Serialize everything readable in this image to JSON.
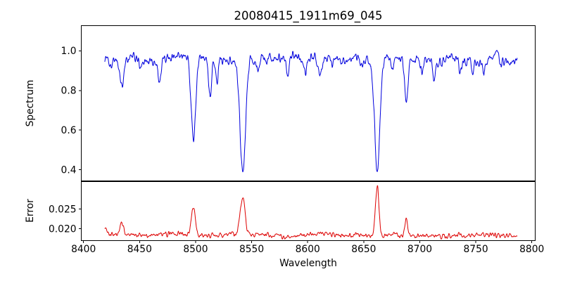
{
  "title": "20080415_1911m69_045",
  "chart_data": {
    "type": "line",
    "title": "20080415_1911m69_045",
    "xlabel": "Wavelength",
    "legend": "none",
    "grid": false,
    "x_axis": {
      "lim": [
        8398,
        8803
      ],
      "data_range": [
        8419,
        8787
      ],
      "ticks": [
        {
          "value": 8400,
          "label": "8400"
        },
        {
          "value": 8450,
          "label": "8450"
        },
        {
          "value": 8500,
          "label": "8500"
        },
        {
          "value": 8550,
          "label": "8550"
        },
        {
          "value": 8600,
          "label": "8600"
        },
        {
          "value": 8650,
          "label": "8650"
        },
        {
          "value": 8700,
          "label": "8700"
        },
        {
          "value": 8750,
          "label": "8750"
        },
        {
          "value": 8800,
          "label": "8800"
        }
      ]
    },
    "panels": [
      {
        "name": "spectrum",
        "ylabel": "Spectrum",
        "color": "#0000dd",
        "ylim": [
          0.344,
          1.127
        ],
        "ticks": [
          {
            "value": 0.4,
            "label": "0.4"
          },
          {
            "value": 0.6,
            "label": "0.6"
          },
          {
            "value": 0.8,
            "label": "0.8"
          },
          {
            "value": 1.0,
            "label": "1.0"
          }
        ],
        "baseline": 0.958,
        "noise_fast": 0.013,
        "noise_slow": 0.009,
        "seed": 1337,
        "lines": [
          {
            "center": 8424,
            "depth": 0.05,
            "sigma": 1.0
          },
          {
            "center": 8434,
            "depth": 0.145,
            "sigma": 1.4
          },
          {
            "center": 8451,
            "depth": 0.05,
            "sigma": 1.0
          },
          {
            "center": 8468,
            "depth": 0.115,
            "sigma": 1.3
          },
          {
            "center": 8498.0,
            "depth": 0.41,
            "sigma": 2.1
          },
          {
            "center": 8513,
            "depth": 0.17,
            "sigma": 1.4
          },
          {
            "center": 8519,
            "depth": 0.1,
            "sigma": 1.1
          },
          {
            "center": 8542.1,
            "depth": 0.57,
            "sigma": 2.5
          },
          {
            "center": 8556,
            "depth": 0.05,
            "sigma": 1.0
          },
          {
            "center": 8582,
            "depth": 0.095,
            "sigma": 1.2
          },
          {
            "center": 8598,
            "depth": 0.075,
            "sigma": 1.1
          },
          {
            "center": 8611,
            "depth": 0.09,
            "sigma": 1.2
          },
          {
            "center": 8622,
            "depth": 0.05,
            "sigma": 1.0
          },
          {
            "center": 8648,
            "depth": 0.055,
            "sigma": 1.0
          },
          {
            "center": 8662.1,
            "depth": 0.555,
            "sigma": 2.3
          },
          {
            "center": 8675,
            "depth": 0.06,
            "sigma": 1.0
          },
          {
            "center": 8688,
            "depth": 0.235,
            "sigma": 1.5
          },
          {
            "center": 8702,
            "depth": 0.05,
            "sigma": 1.0
          },
          {
            "center": 8713,
            "depth": 0.08,
            "sigma": 1.1
          },
          {
            "center": 8736,
            "depth": 0.075,
            "sigma": 1.2
          },
          {
            "center": 8747,
            "depth": 0.05,
            "sigma": 1.0
          },
          {
            "center": 8757,
            "depth": 0.065,
            "sigma": 1.1
          },
          {
            "center": 8772,
            "depth": 0.04,
            "sigma": 1.0
          }
        ]
      },
      {
        "name": "error",
        "ylabel": "Error",
        "color": "#dd0000",
        "ylim": [
          0.017,
          0.032
        ],
        "ticks": [
          {
            "value": 0.02,
            "label": "0.020"
          },
          {
            "value": 0.025,
            "label": "0.025"
          }
        ],
        "baseline": 0.0184,
        "noise_fast": 0.0003,
        "noise_slow": 0.00018,
        "seed": 2024,
        "peaks": [
          {
            "center": 8420,
            "height": 0.0015,
            "sigma": 1.2
          },
          {
            "center": 8434,
            "height": 0.003,
            "sigma": 1.4
          },
          {
            "center": 8498,
            "height": 0.007,
            "sigma": 1.8
          },
          {
            "center": 8542,
            "height": 0.0095,
            "sigma": 2.2
          },
          {
            "center": 8662,
            "height": 0.0128,
            "sigma": 1.6
          },
          {
            "center": 8688,
            "height": 0.0042,
            "sigma": 1.2
          }
        ]
      }
    ]
  }
}
